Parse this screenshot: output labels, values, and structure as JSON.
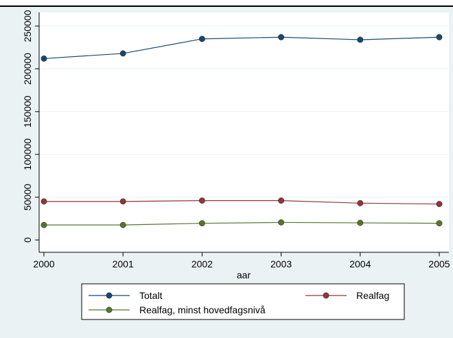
{
  "chart_data": {
    "type": "line",
    "xlabel": "aar",
    "ylabel": "",
    "x": [
      2000,
      2001,
      2002,
      2003,
      2004,
      2005
    ],
    "xlim": [
      2000,
      2005
    ],
    "ylim": [
      0,
      250000
    ],
    "xticks": [
      "2000",
      "2001",
      "2002",
      "2003",
      "2004",
      "2005"
    ],
    "yticks": [
      "0",
      "50000",
      "100000",
      "150000",
      "200000",
      "250000"
    ],
    "grid": true,
    "legend_position": "bottom",
    "series": [
      {
        "name": "Totalt",
        "color": "#1a476f",
        "values": [
          212000,
          218000,
          235000,
          237000,
          234000,
          237000
        ]
      },
      {
        "name": "Realfag",
        "color": "#90353b",
        "values": [
          45000,
          45000,
          46000,
          46000,
          43000,
          42000
        ]
      },
      {
        "name": "Realfag, minst hovedfagsnivå",
        "color": "#55752f",
        "values": [
          17500,
          17500,
          19500,
          20500,
          20000,
          19500
        ]
      }
    ],
    "colors": {
      "outer_background": "#eaf2f3",
      "plot_background": "#ffffff",
      "grid": "#eaf2f3"
    }
  }
}
